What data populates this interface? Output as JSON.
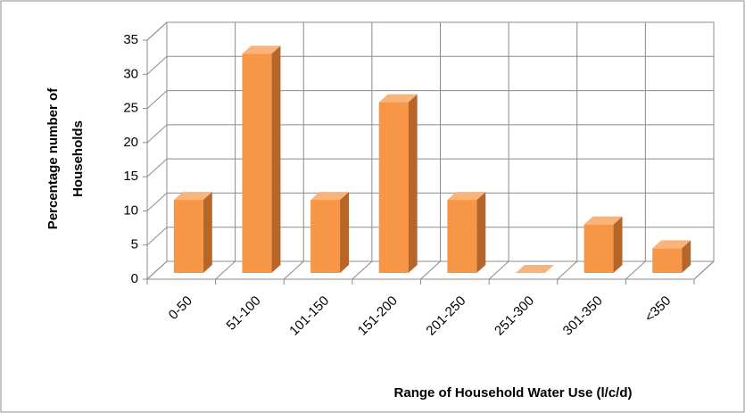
{
  "chart_data": {
    "type": "bar3d",
    "xlabel": "Range of Household Water Use (l/c/d)",
    "ylabel": [
      "Percentage number of",
      "Households"
    ],
    "categories": [
      "0-50",
      "51-100",
      "101-150",
      "151-200",
      "201-250",
      "251-300",
      "301-350",
      "<350"
    ],
    "values": [
      10.7,
      32.1,
      10.7,
      25,
      10.7,
      0,
      7.1,
      3.6
    ],
    "color": "#f79646",
    "ylim": [
      0,
      35
    ],
    "yticks": [
      0,
      5,
      10,
      15,
      20,
      25,
      30,
      35
    ],
    "grid": true
  }
}
